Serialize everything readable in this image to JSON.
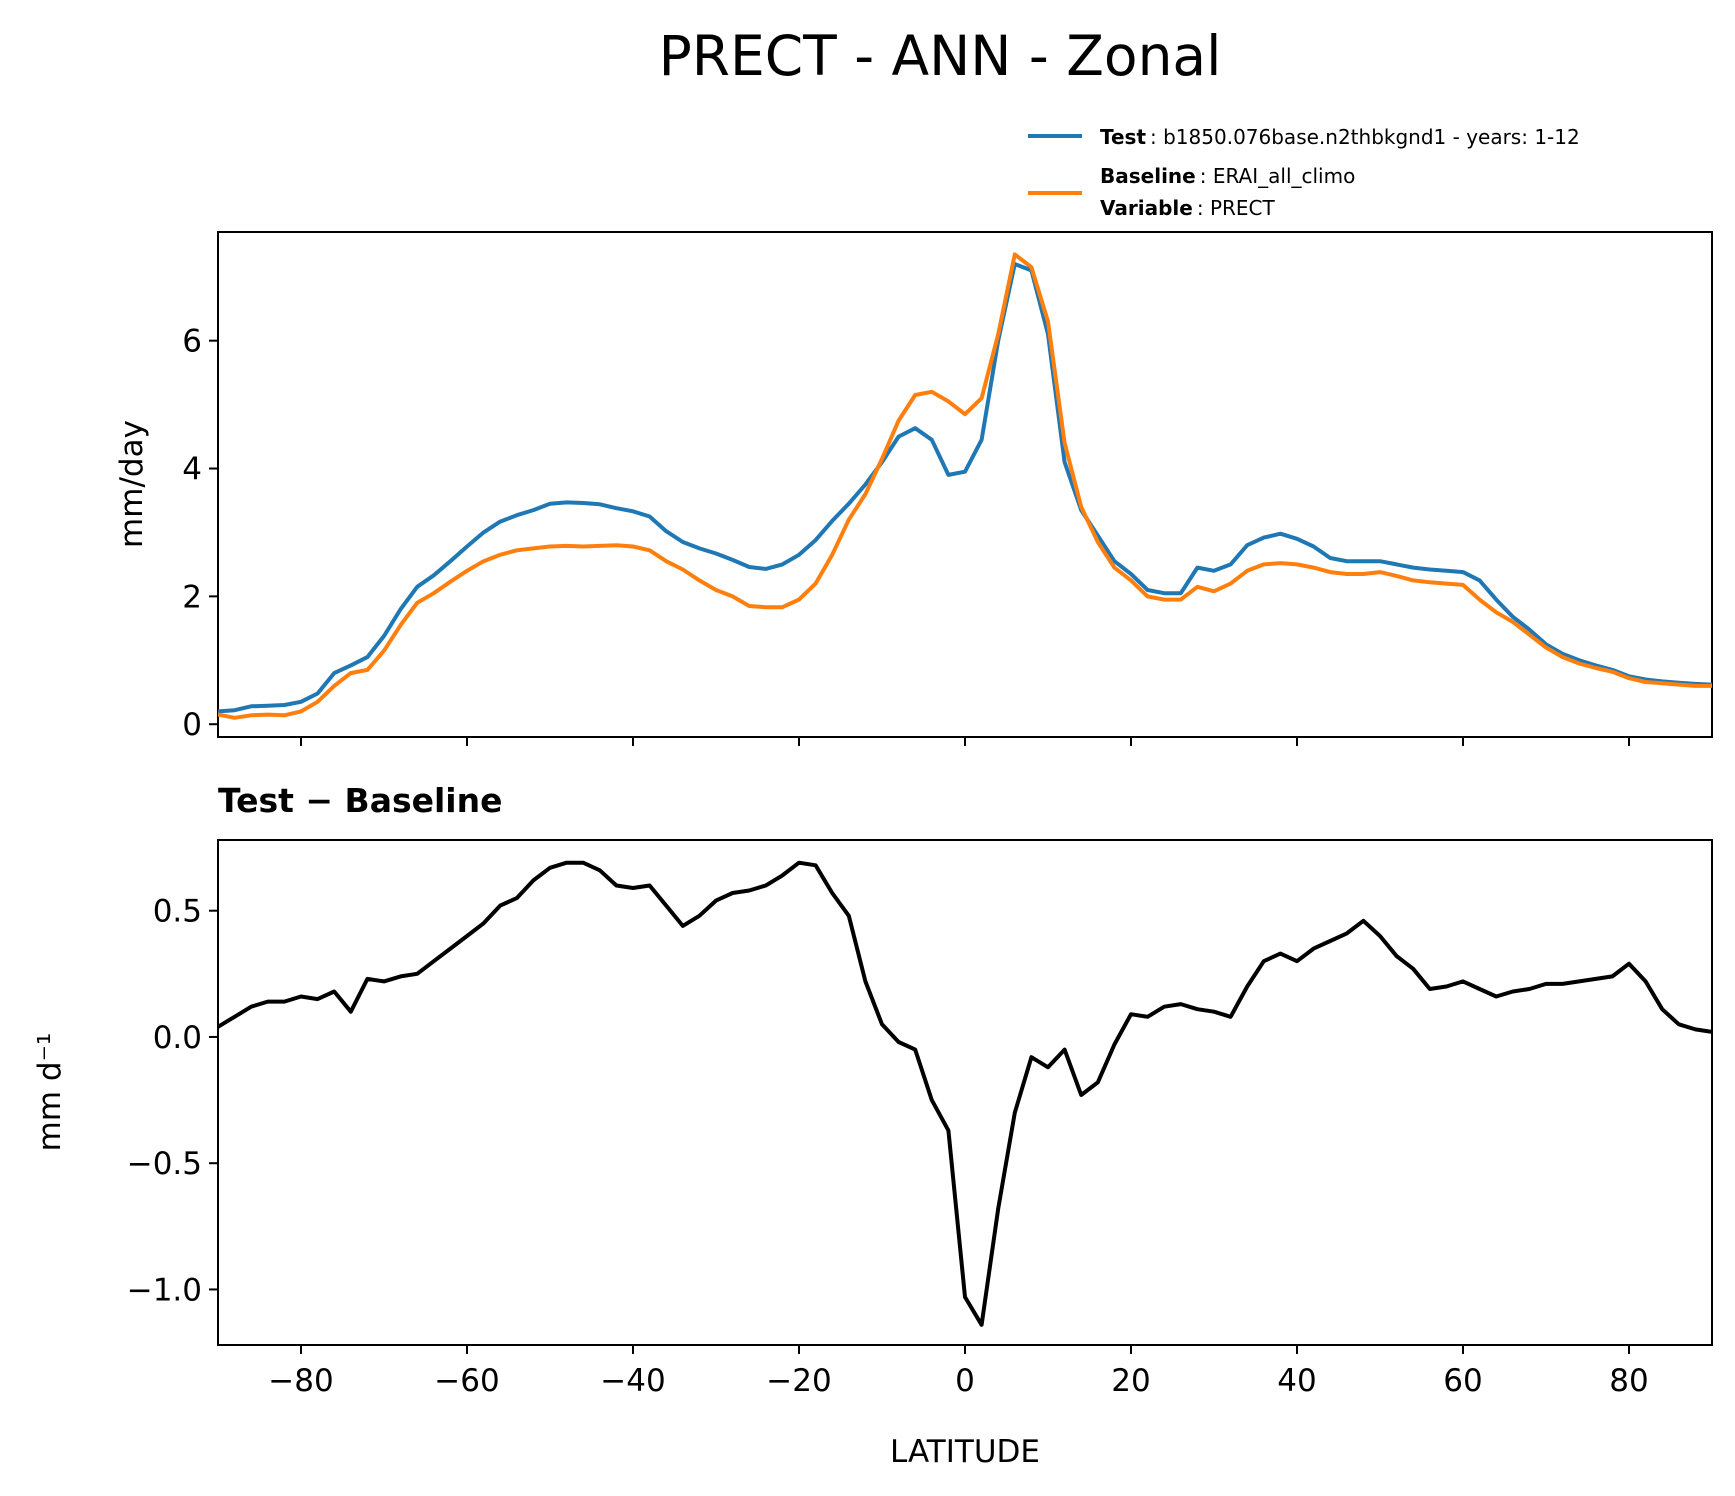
{
  "figure_title": "PRECT - ANN - Zonal",
  "legend": {
    "test_key": "Test",
    "test_value": ": b1850.076base.n2thbkgnd1 - years: 1-12",
    "baseline_key": "Baseline",
    "baseline_value": ": ERAI_all_climo",
    "variable_key": "Variable",
    "variable_value": ": PRECT"
  },
  "colors": {
    "test": "#1f77b4",
    "baseline": "#ff7f0e",
    "difference": "#000000"
  },
  "chart_data": [
    {
      "type": "line",
      "ylabel": "mm/day",
      "xlim": [
        -90,
        90
      ],
      "ylim": [
        -0.2,
        7.7
      ],
      "yticks": [
        0,
        2,
        4,
        6
      ],
      "xticks": [
        -80,
        -60,
        -40,
        -20,
        0,
        20,
        40,
        60,
        80
      ],
      "grid": false,
      "legend_position": "above the plot, right",
      "x": [
        -90,
        -88,
        -86,
        -84,
        -82,
        -80,
        -78,
        -76,
        -74,
        -72,
        -70,
        -68,
        -66,
        -64,
        -62,
        -60,
        -58,
        -56,
        -54,
        -52,
        -50,
        -48,
        -46,
        -44,
        -42,
        -40,
        -38,
        -36,
        -34,
        -32,
        -30,
        -28,
        -26,
        -24,
        -22,
        -20,
        -18,
        -16,
        -14,
        -12,
        -10,
        -8,
        -6,
        -4,
        -2,
        0,
        2,
        4,
        6,
        8,
        10,
        12,
        14,
        16,
        18,
        20,
        22,
        24,
        26,
        28,
        30,
        32,
        34,
        36,
        38,
        40,
        42,
        44,
        46,
        48,
        50,
        52,
        54,
        56,
        58,
        60,
        62,
        64,
        66,
        68,
        70,
        72,
        74,
        76,
        78,
        80,
        82,
        84,
        86,
        88,
        90
      ],
      "series": [
        {
          "name": "Test",
          "color": "#1f77b4",
          "values": [
            0.2,
            0.22,
            0.28,
            0.29,
            0.3,
            0.35,
            0.48,
            0.8,
            0.92,
            1.05,
            1.38,
            1.8,
            2.15,
            2.33,
            2.55,
            2.78,
            3.0,
            3.17,
            3.27,
            3.35,
            3.45,
            3.47,
            3.46,
            3.44,
            3.38,
            3.33,
            3.25,
            3.02,
            2.85,
            2.75,
            2.67,
            2.57,
            2.46,
            2.43,
            2.5,
            2.65,
            2.88,
            3.18,
            3.45,
            3.75,
            4.1,
            4.5,
            4.63,
            4.45,
            3.9,
            3.95,
            4.45,
            6.0,
            7.2,
            7.1,
            6.1,
            4.1,
            3.35,
            2.95,
            2.55,
            2.35,
            2.1,
            2.05,
            2.05,
            2.45,
            2.4,
            2.5,
            2.8,
            2.92,
            2.98,
            2.9,
            2.78,
            2.6,
            2.55,
            2.55,
            2.55,
            2.5,
            2.45,
            2.42,
            2.4,
            2.38,
            2.25,
            1.95,
            1.68,
            1.48,
            1.25,
            1.1,
            1.0,
            0.92,
            0.85,
            0.75,
            0.7,
            0.67,
            0.65,
            0.63,
            0.62
          ]
        },
        {
          "name": "Baseline",
          "color": "#ff7f0e",
          "values": [
            0.15,
            0.1,
            0.14,
            0.15,
            0.14,
            0.2,
            0.35,
            0.6,
            0.8,
            0.85,
            1.15,
            1.55,
            1.9,
            2.05,
            2.23,
            2.4,
            2.55,
            2.65,
            2.72,
            2.75,
            2.78,
            2.79,
            2.78,
            2.79,
            2.8,
            2.78,
            2.72,
            2.55,
            2.42,
            2.25,
            2.1,
            2.0,
            1.85,
            1.83,
            1.83,
            1.95,
            2.2,
            2.65,
            3.2,
            3.6,
            4.15,
            4.75,
            5.15,
            5.2,
            5.05,
            4.85,
            5.1,
            6.1,
            7.35,
            7.15,
            6.3,
            4.4,
            3.4,
            2.85,
            2.45,
            2.25,
            2.0,
            1.95,
            1.95,
            2.15,
            2.08,
            2.2,
            2.4,
            2.5,
            2.52,
            2.5,
            2.45,
            2.38,
            2.35,
            2.35,
            2.38,
            2.32,
            2.25,
            2.22,
            2.2,
            2.18,
            1.95,
            1.75,
            1.6,
            1.4,
            1.2,
            1.05,
            0.95,
            0.88,
            0.82,
            0.72,
            0.66,
            0.64,
            0.62,
            0.6,
            0.6
          ]
        }
      ]
    },
    {
      "type": "line",
      "title": "Test − Baseline",
      "ylabel": "mm d⁻¹",
      "xlabel": "LATITUDE",
      "xlim": [
        -90,
        90
      ],
      "ylim": [
        -1.22,
        0.78
      ],
      "yticks": [
        0.5,
        0.0,
        -0.5,
        -1.0
      ],
      "ytick_labels": [
        "0.5",
        "0.0",
        "−0.5",
        "−1.0"
      ],
      "xticks": [
        -80,
        -60,
        -40,
        -20,
        0,
        20,
        40,
        60,
        80
      ],
      "xtick_labels": [
        "−80",
        "−60",
        "−40",
        "−20",
        "0",
        "20",
        "40",
        "60",
        "80"
      ],
      "grid": false,
      "x": [
        -90,
        -88,
        -86,
        -84,
        -82,
        -80,
        -78,
        -76,
        -74,
        -72,
        -70,
        -68,
        -66,
        -64,
        -62,
        -60,
        -58,
        -56,
        -54,
        -52,
        -50,
        -48,
        -46,
        -44,
        -42,
        -40,
        -38,
        -36,
        -34,
        -32,
        -30,
        -28,
        -26,
        -24,
        -22,
        -20,
        -18,
        -16,
        -14,
        -12,
        -10,
        -8,
        -6,
        -4,
        -2,
        0,
        2,
        4,
        6,
        8,
        10,
        12,
        14,
        16,
        18,
        20,
        22,
        24,
        26,
        28,
        30,
        32,
        34,
        36,
        38,
        40,
        42,
        44,
        46,
        48,
        50,
        52,
        54,
        56,
        58,
        60,
        62,
        64,
        66,
        68,
        70,
        72,
        74,
        76,
        78,
        80,
        82,
        84,
        86,
        88,
        90
      ],
      "series": [
        {
          "color": "#000000",
          "values": [
            0.04,
            0.08,
            0.12,
            0.14,
            0.14,
            0.16,
            0.15,
            0.18,
            0.1,
            0.23,
            0.22,
            0.24,
            0.25,
            0.3,
            0.35,
            0.4,
            0.45,
            0.52,
            0.55,
            0.62,
            0.67,
            0.69,
            0.69,
            0.66,
            0.6,
            0.59,
            0.6,
            0.52,
            0.44,
            0.48,
            0.54,
            0.57,
            0.58,
            0.6,
            0.64,
            0.69,
            0.68,
            0.57,
            0.48,
            0.22,
            0.05,
            -0.02,
            -0.05,
            -0.25,
            -0.37,
            -1.03,
            -1.14,
            -0.68,
            -0.3,
            -0.08,
            -0.12,
            -0.05,
            -0.23,
            -0.18,
            -0.03,
            0.09,
            0.08,
            0.12,
            0.13,
            0.11,
            0.1,
            0.08,
            0.2,
            0.3,
            0.33,
            0.3,
            0.35,
            0.38,
            0.41,
            0.46,
            0.4,
            0.32,
            0.27,
            0.19,
            0.2,
            0.22,
            0.19,
            0.16,
            0.18,
            0.19,
            0.21,
            0.21,
            0.22,
            0.23,
            0.24,
            0.29,
            0.22,
            0.11,
            0.05,
            0.03,
            0.02
          ]
        }
      ]
    }
  ]
}
